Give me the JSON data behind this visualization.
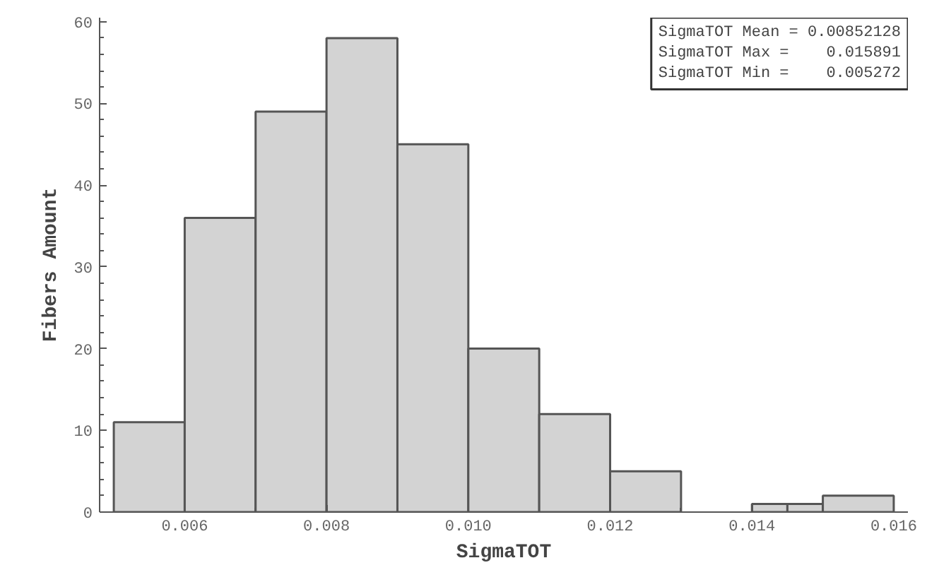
{
  "chart_data": {
    "type": "histogram",
    "xlabel": "SigmaTOT",
    "ylabel": "Fibers Amount",
    "bins": [
      0.005,
      0.006,
      0.007,
      0.008,
      0.009,
      0.01,
      0.011,
      0.012,
      0.013,
      0.014,
      0.0145,
      0.015,
      0.016
    ],
    "values": [
      11,
      36,
      49,
      58,
      45,
      20,
      12,
      5,
      0,
      1,
      1,
      2
    ],
    "color": "#d3d3d3",
    "xlim": [
      0.0048,
      0.0162
    ],
    "xticks": [
      {
        "value": 0.006,
        "label": "0.006"
      },
      {
        "value": 0.008,
        "label": "0.008"
      },
      {
        "value": 0.01,
        "label": "0.010"
      },
      {
        "value": 0.012,
        "label": "0.012"
      },
      {
        "value": 0.014,
        "label": "0.014"
      },
      {
        "value": 0.016,
        "label": "0.016"
      }
    ],
    "ylim": [
      0,
      60.5
    ],
    "yticks": [
      0,
      10,
      20,
      30,
      40,
      50,
      60
    ],
    "grid": false,
    "annotations": [
      "SigmaTOT Mean = 0.00852128",
      "SigmaTOT Max =    0.015891",
      "SigmaTOT Min =    0.005272"
    ]
  }
}
